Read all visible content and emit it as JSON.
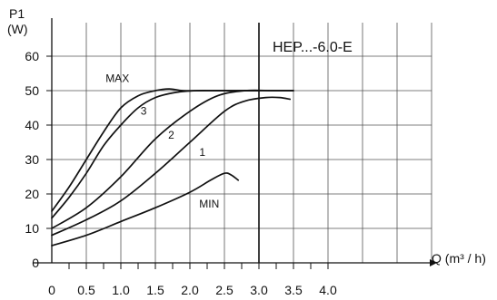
{
  "chart_data": {
    "type": "line",
    "y_title": "P1",
    "y_unit": "(W)",
    "x_title": "Q (m³ / h)",
    "model_label": "HEP...-6.0-E",
    "xlim": [
      0,
      6.0
    ],
    "ylim": [
      0,
      60
    ],
    "x_ticks": [
      "0",
      "0.5",
      "1.0",
      "1.5",
      "2.0",
      "2.5",
      "3.0",
      "3.5",
      "4.0"
    ],
    "y_ticks": [
      "0",
      "10",
      "20",
      "30",
      "40",
      "50",
      "60"
    ],
    "grid": true,
    "series": [
      {
        "name": "MAX",
        "x": [
          0,
          0.25,
          0.5,
          0.75,
          1.0,
          1.25,
          1.5,
          1.7,
          1.9,
          2.2,
          2.5,
          2.8,
          3.1,
          3.5
        ],
        "y": [
          15,
          22,
          30,
          38,
          45,
          48.5,
          50,
          50.5,
          50,
          50,
          50,
          50,
          50,
          50
        ]
      },
      {
        "name": "3",
        "x": [
          0,
          0.25,
          0.5,
          0.75,
          1.0,
          1.25,
          1.5,
          1.8,
          2.1,
          2.4,
          2.7,
          3.0
        ],
        "y": [
          13,
          19,
          26,
          34,
          40,
          45,
          48,
          49.5,
          50,
          50,
          50,
          50
        ]
      },
      {
        "name": "2",
        "x": [
          0,
          0.5,
          1.0,
          1.5,
          2.0,
          2.4,
          2.8,
          3.2,
          3.5
        ],
        "y": [
          10,
          16,
          25,
          36,
          44,
          48.5,
          50,
          50,
          50
        ]
      },
      {
        "name": "1",
        "x": [
          0,
          0.5,
          1.0,
          1.5,
          2.0,
          2.5,
          2.8,
          3.1,
          3.3,
          3.45
        ],
        "y": [
          8,
          12.5,
          18,
          26,
          35,
          44,
          47,
          48,
          48,
          47.5
        ]
      },
      {
        "name": "MIN",
        "x": [
          0,
          0.5,
          1.0,
          1.5,
          2.0,
          2.3,
          2.5,
          2.6,
          2.7
        ],
        "y": [
          5,
          8,
          12,
          16,
          20.5,
          24,
          26,
          25.5,
          24
        ]
      }
    ],
    "curve_labels": [
      {
        "text": "MAX",
        "x": 0.95,
        "y": 52.5
      },
      {
        "text": "3",
        "x": 1.33,
        "y": 43
      },
      {
        "text": "2",
        "x": 1.73,
        "y": 36
      },
      {
        "text": "1",
        "x": 2.18,
        "y": 31
      },
      {
        "text": "MIN",
        "x": 2.28,
        "y": 16
      }
    ]
  }
}
